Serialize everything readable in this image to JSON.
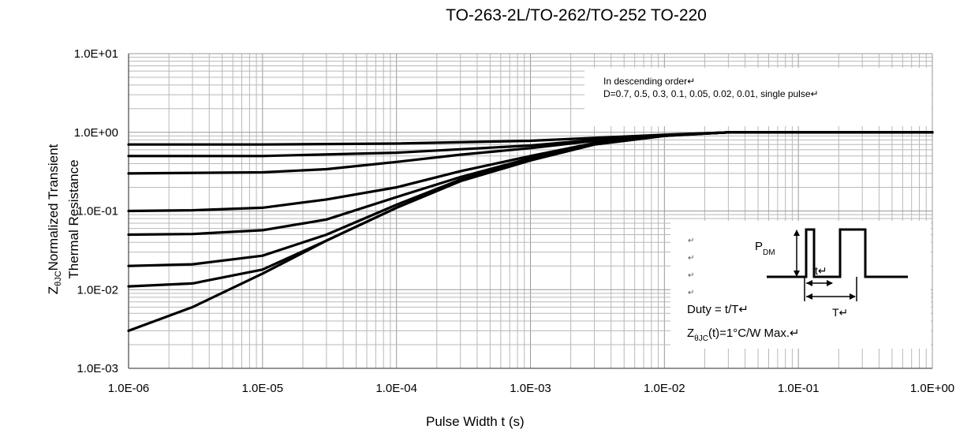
{
  "chart_data": {
    "type": "line",
    "title": "TO-263-2L/TO-262/TO-252 TO-220",
    "xlabel": "Pulse Width t (s)",
    "ylabel_parts": [
      "Z",
      "θJC",
      "Normalized Transient",
      "Thermal Resistance"
    ],
    "x_scale": "log",
    "y_scale": "log",
    "xlim": [
      1e-06,
      1
    ],
    "ylim": [
      0.001,
      10
    ],
    "x_ticks": [
      "1.0E-06",
      "1.0E-05",
      "1.0E-04",
      "1.0E-03",
      "1.0E-02",
      "1.0E-01",
      "1.0E+00"
    ],
    "y_ticks": [
      "1.0E+01",
      "1.0E+00",
      "1.0E-01",
      "1.0E-02",
      "1.0E-03"
    ],
    "grid": true,
    "series": [
      {
        "x": [
          1e-06,
          1e-05,
          0.0001,
          0.001,
          0.003,
          0.01,
          0.03,
          0.1,
          1
        ],
        "values": [
          0.7,
          0.7,
          0.72,
          0.78,
          0.85,
          0.93,
          1.0,
          1.0,
          1.0
        ]
      },
      {
        "x": [
          1e-06,
          1e-05,
          0.0001,
          0.001,
          0.003,
          0.01,
          0.03,
          0.1,
          1
        ],
        "values": [
          0.5,
          0.5,
          0.55,
          0.68,
          0.8,
          0.92,
          1.0,
          1.0,
          1.0
        ]
      },
      {
        "x": [
          1e-06,
          1e-05,
          3e-05,
          0.0001,
          0.0003,
          0.001,
          0.003,
          0.01,
          0.03,
          1
        ],
        "values": [
          0.3,
          0.31,
          0.34,
          0.42,
          0.52,
          0.63,
          0.78,
          0.92,
          1.0,
          1.0
        ]
      },
      {
        "x": [
          1e-06,
          3e-06,
          1e-05,
          3e-05,
          0.0001,
          0.0003,
          0.001,
          0.003,
          0.01,
          0.03,
          1
        ],
        "values": [
          0.1,
          0.102,
          0.11,
          0.14,
          0.2,
          0.32,
          0.5,
          0.73,
          0.91,
          1.0,
          1.0
        ]
      },
      {
        "x": [
          1e-06,
          3e-06,
          1e-05,
          3e-05,
          0.0001,
          0.0003,
          0.001,
          0.003,
          0.01,
          0.03,
          1
        ],
        "values": [
          0.05,
          0.051,
          0.057,
          0.078,
          0.15,
          0.27,
          0.47,
          0.72,
          0.91,
          1.0,
          1.0
        ]
      },
      {
        "x": [
          1e-06,
          3e-06,
          1e-05,
          3e-05,
          0.0001,
          0.0003,
          0.001,
          0.003,
          0.01,
          0.03,
          1
        ],
        "values": [
          0.02,
          0.021,
          0.027,
          0.05,
          0.12,
          0.25,
          0.45,
          0.71,
          0.91,
          1.0,
          1.0
        ]
      },
      {
        "x": [
          1e-06,
          3e-06,
          1e-05,
          3e-05,
          0.0001,
          0.0003,
          0.001,
          0.003,
          0.01,
          0.03,
          1
        ],
        "values": [
          0.011,
          0.012,
          0.018,
          0.042,
          0.11,
          0.24,
          0.44,
          0.7,
          0.9,
          1.0,
          1.0
        ]
      },
      {
        "x": [
          1e-06,
          3e-06,
          1e-05,
          3e-05,
          0.0001,
          0.0003,
          0.001,
          0.003,
          0.01,
          0.03,
          1
        ],
        "values": [
          0.003,
          0.006,
          0.016,
          0.042,
          0.11,
          0.24,
          0.44,
          0.7,
          0.9,
          1.0,
          1.0
        ]
      }
    ],
    "legend_text": {
      "line1": "In descending order↵",
      "line2": "D=0.7, 0.5, 0.3, 0.1, 0.05, 0.02, 0.01, single pulse↵"
    },
    "inset": {
      "return_marks": [
        "↵",
        "↵",
        "↵",
        "↵"
      ],
      "pdm_main": "P",
      "pdm_sub": "DM",
      "t_label": "t↵",
      "T_label": "T↵",
      "duty": "Duty = t/T↵",
      "z_main": "Z",
      "z_sub": "θJC",
      "z_rest": "(t)=1°C/W Max.↵"
    }
  }
}
